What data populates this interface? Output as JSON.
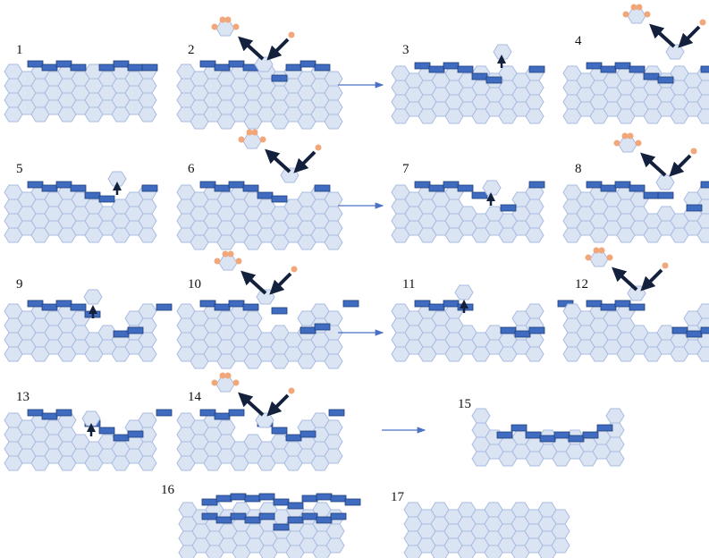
{
  "panels": [
    {
      "label": "1"
    },
    {
      "label": "2"
    },
    {
      "label": "3"
    },
    {
      "label": "4"
    },
    {
      "label": "5"
    },
    {
      "label": "6"
    },
    {
      "label": "7"
    },
    {
      "label": "8"
    },
    {
      "label": "9"
    },
    {
      "label": "10"
    },
    {
      "label": "11"
    },
    {
      "label": "12"
    },
    {
      "label": "13"
    },
    {
      "label": "14"
    },
    {
      "label": "15"
    },
    {
      "label": "16"
    },
    {
      "label": "17"
    }
  ]
}
